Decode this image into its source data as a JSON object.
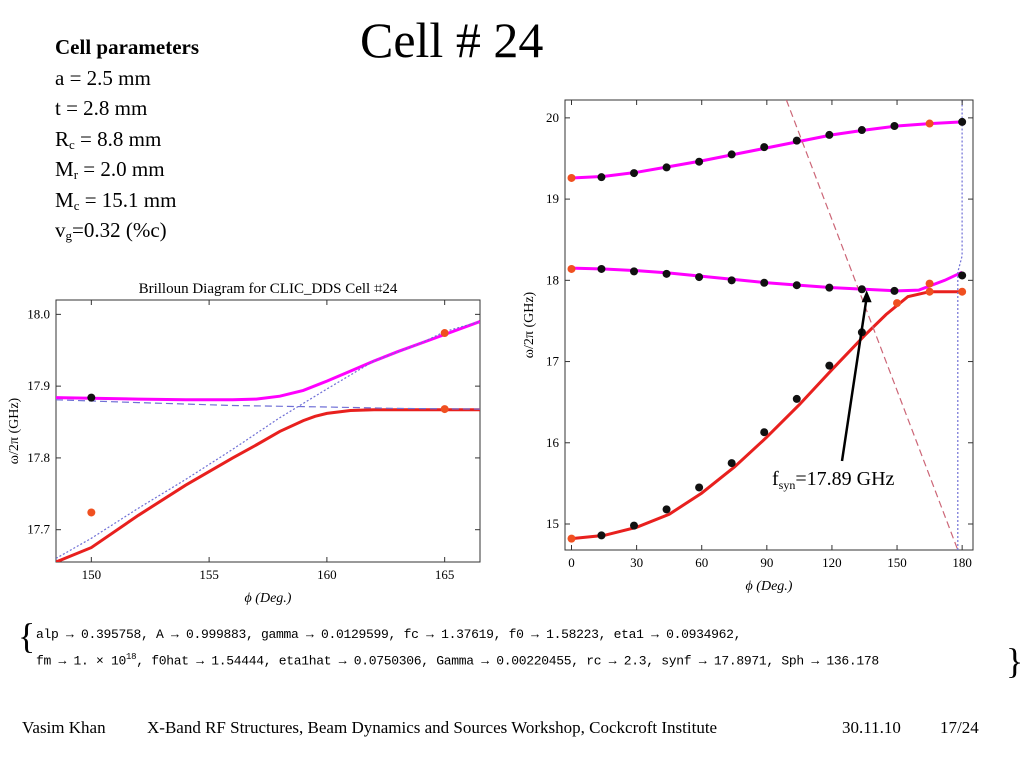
{
  "slide": {
    "title": "Cell # 24",
    "params_heading": "Cell parameters",
    "params": [
      {
        "name": "a",
        "sub": "",
        "value": " = 2.5 mm"
      },
      {
        "name": "t",
        "sub": "",
        "value": " = 2.8 mm"
      },
      {
        "name": "R",
        "sub": "c",
        "value": " = 8.8 mm"
      },
      {
        "name": "M",
        "sub": "r",
        "value": " = 2.0 mm"
      },
      {
        "name": "M",
        "sub": "c",
        "value": " = 15.1 mm"
      },
      {
        "name": "v",
        "sub": "g",
        "value": "=0.32 (%c)"
      }
    ],
    "fit_line1": "alp → 0.395758, A → 0.999883, gamma → 0.0129599, fc → 1.37619, f0 → 1.58223, eta1 → 0.0934962,",
    "fit_line2_a": "fm → 1. × 10",
    "fit_line2_exp": "18",
    "fit_line2_b": ", f0hat → 1.54444, eta1hat → 0.0750306, Gamma → 0.00220455, rc → 2.3, synf → 17.8971, Sph → 136.178",
    "footer": {
      "author": "Vasim Khan",
      "event": "X-Band RF Structures, Beam Dynamics and Sources Workshop, Cockcroft Institute",
      "date": "30.11.10",
      "page": "17/24"
    }
  },
  "chart_data": [
    {
      "type": "line",
      "title": "Brilloun Diagram for CLIC_DDS Cell ⌗24",
      "xlabel": "ϕ (Deg.)",
      "ylabel": "ω/2π (GHz)",
      "xlim": [
        148.5,
        166.5
      ],
      "ylim": [
        17.655,
        18.02
      ],
      "xticks": [
        150,
        155,
        160,
        165
      ],
      "yticks": [
        17.7,
        17.8,
        17.9,
        18.0
      ],
      "series": [
        {
          "role": "upper-fit",
          "color": "#ff00ff",
          "style": "solid",
          "x": [
            148.5,
            150,
            152,
            154,
            156,
            157,
            158,
            159,
            160,
            161,
            162,
            163,
            164,
            165,
            166.5
          ],
          "y": [
            17.884,
            17.883,
            17.882,
            17.881,
            17.881,
            17.882,
            17.886,
            17.894,
            17.907,
            17.921,
            17.935,
            17.948,
            17.96,
            17.972,
            17.99
          ]
        },
        {
          "role": "lower-fit",
          "color": "#e8201e",
          "style": "solid",
          "x": [
            148.5,
            150,
            152,
            154,
            156,
            157,
            158,
            159,
            159.5,
            160,
            161,
            162,
            163,
            164,
            165,
            166.5
          ],
          "y": [
            17.655,
            17.675,
            17.72,
            17.762,
            17.8,
            17.818,
            17.837,
            17.852,
            17.858,
            17.862,
            17.866,
            17.867,
            17.867,
            17.867,
            17.867,
            17.867
          ]
        },
        {
          "role": "uncoupled-light-line",
          "color": "#6f6fd6",
          "style": "dotted",
          "x": [
            148.5,
            150,
            152,
            154,
            156,
            158,
            160,
            162,
            164,
            165,
            166.5
          ],
          "y": [
            17.66,
            17.688,
            17.73,
            17.77,
            17.812,
            17.856,
            17.896,
            17.935,
            17.96,
            17.976,
            17.99
          ]
        },
        {
          "role": "uncoupled-mode",
          "color": "#6f6fd6",
          "style": "dashed",
          "x": [
            148.5,
            152,
            156,
            160,
            163,
            166.5
          ],
          "y": [
            17.881,
            17.877,
            17.873,
            17.871,
            17.869,
            17.868
          ]
        }
      ],
      "points": [
        {
          "x": 150,
          "y": 17.884,
          "color": "#111111"
        },
        {
          "x": 150,
          "y": 17.724,
          "color": "#f05020"
        },
        {
          "x": 165,
          "y": 17.974,
          "color": "#f05020"
        },
        {
          "x": 165,
          "y": 17.868,
          "color": "#f05020"
        }
      ]
    },
    {
      "type": "line",
      "xlabel": "ϕ (Deg.)",
      "ylabel": "ω/2π (GHz)",
      "xlim": [
        -3,
        185
      ],
      "ylim": [
        14.68,
        20.22
      ],
      "xticks": [
        0,
        30,
        60,
        90,
        120,
        150,
        180
      ],
      "yticks": [
        15,
        16,
        17,
        18,
        19,
        20
      ],
      "annotation": {
        "text": "f",
        "sub": "syn",
        "rest": "=17.89 GHz",
        "arrow_to": {
          "x": 136,
          "y": 17.89
        }
      },
      "series": [
        {
          "role": "upper-band",
          "color": "#ff00ff",
          "style": "solid",
          "x": [
            0,
            15,
            30,
            45,
            60,
            75,
            90,
            105,
            120,
            135,
            150,
            165,
            180
          ],
          "y": [
            19.26,
            19.28,
            19.33,
            19.4,
            19.47,
            19.55,
            19.63,
            19.71,
            19.79,
            19.85,
            19.9,
            19.93,
            19.95
          ]
        },
        {
          "role": "second-band-fit",
          "color": "#ff00ff",
          "style": "solid",
          "x": [
            0,
            15,
            30,
            45,
            60,
            75,
            90,
            105,
            120,
            135,
            150,
            160,
            165,
            172,
            180
          ],
          "y": [
            18.15,
            18.14,
            18.12,
            18.09,
            18.05,
            18.01,
            17.97,
            17.94,
            17.91,
            17.89,
            17.87,
            17.88,
            17.93,
            18.0,
            18.1
          ]
        },
        {
          "role": "first-band-fit",
          "color": "#e8201e",
          "style": "solid",
          "x": [
            0,
            15,
            30,
            45,
            60,
            75,
            90,
            105,
            120,
            135,
            145,
            155,
            165,
            172,
            180
          ],
          "y": [
            14.82,
            14.86,
            14.96,
            15.12,
            15.38,
            15.7,
            16.07,
            16.47,
            16.9,
            17.32,
            17.58,
            17.8,
            17.86,
            17.86,
            17.86
          ]
        },
        {
          "role": "light-line",
          "color": "#cc6677",
          "style": "dashed",
          "x": [
            99,
            178
          ],
          "y": [
            20.22,
            14.68
          ]
        },
        {
          "role": "pi-mode-line",
          "color": "#6f6fd6",
          "style": "dotted",
          "x": [
            178,
            178,
            180,
            180
          ],
          "y": [
            14.68,
            18.1,
            18.3,
            20.22
          ]
        }
      ],
      "points": [
        {
          "x": 0,
          "y": 19.26,
          "color": "#f05020"
        },
        {
          "x": 13.8,
          "y": 19.27,
          "color": "#111111"
        },
        {
          "x": 28.8,
          "y": 19.32,
          "color": "#111111"
        },
        {
          "x": 43.8,
          "y": 19.39,
          "color": "#111111"
        },
        {
          "x": 58.8,
          "y": 19.46,
          "color": "#111111"
        },
        {
          "x": 73.8,
          "y": 19.55,
          "color": "#111111"
        },
        {
          "x": 88.8,
          "y": 19.64,
          "color": "#111111"
        },
        {
          "x": 103.8,
          "y": 19.72,
          "color": "#111111"
        },
        {
          "x": 118.8,
          "y": 19.79,
          "color": "#111111"
        },
        {
          "x": 133.8,
          "y": 19.85,
          "color": "#111111"
        },
        {
          "x": 148.8,
          "y": 19.9,
          "color": "#111111"
        },
        {
          "x": 165,
          "y": 19.93,
          "color": "#f05020"
        },
        {
          "x": 180,
          "y": 19.95,
          "color": "#111111"
        },
        {
          "x": 0,
          "y": 18.14,
          "color": "#f05020"
        },
        {
          "x": 13.8,
          "y": 18.14,
          "color": "#111111"
        },
        {
          "x": 28.8,
          "y": 18.11,
          "color": "#111111"
        },
        {
          "x": 43.8,
          "y": 18.08,
          "color": "#111111"
        },
        {
          "x": 58.8,
          "y": 18.04,
          "color": "#111111"
        },
        {
          "x": 73.8,
          "y": 18.0,
          "color": "#111111"
        },
        {
          "x": 88.8,
          "y": 17.97,
          "color": "#111111"
        },
        {
          "x": 103.8,
          "y": 17.94,
          "color": "#111111"
        },
        {
          "x": 118.8,
          "y": 17.91,
          "color": "#111111"
        },
        {
          "x": 133.8,
          "y": 17.89,
          "color": "#111111"
        },
        {
          "x": 148.8,
          "y": 17.87,
          "color": "#111111"
        },
        {
          "x": 165,
          "y": 17.96,
          "color": "#f05020"
        },
        {
          "x": 180,
          "y": 18.06,
          "color": "#111111"
        },
        {
          "x": 0,
          "y": 14.82,
          "color": "#f05020"
        },
        {
          "x": 13.8,
          "y": 14.86,
          "color": "#111111"
        },
        {
          "x": 28.8,
          "y": 14.98,
          "color": "#111111"
        },
        {
          "x": 43.8,
          "y": 15.18,
          "color": "#111111"
        },
        {
          "x": 58.8,
          "y": 15.45,
          "color": "#111111"
        },
        {
          "x": 73.8,
          "y": 15.75,
          "color": "#111111"
        },
        {
          "x": 88.8,
          "y": 16.13,
          "color": "#111111"
        },
        {
          "x": 103.8,
          "y": 16.54,
          "color": "#111111"
        },
        {
          "x": 118.8,
          "y": 16.95,
          "color": "#111111"
        },
        {
          "x": 133.8,
          "y": 17.36,
          "color": "#111111"
        },
        {
          "x": 150,
          "y": 17.72,
          "color": "#f05020"
        },
        {
          "x": 165,
          "y": 17.86,
          "color": "#f05020"
        },
        {
          "x": 180,
          "y": 17.86,
          "color": "#f05020"
        }
      ]
    }
  ]
}
